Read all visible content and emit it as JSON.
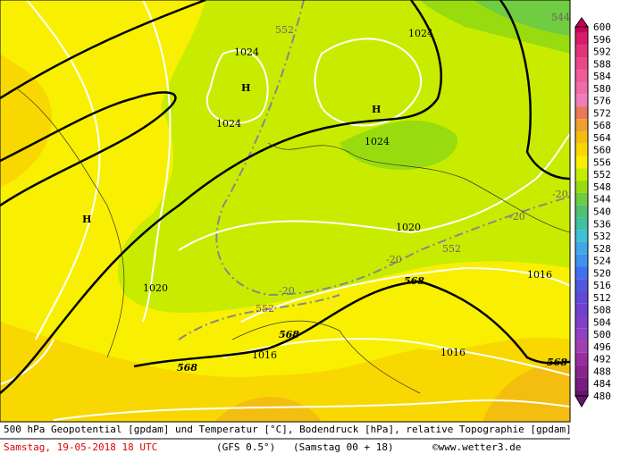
{
  "colorbar": {
    "labels": [
      600,
      596,
      592,
      588,
      584,
      580,
      576,
      572,
      568,
      564,
      560,
      556,
      552,
      548,
      544,
      540,
      536,
      532,
      528,
      524,
      520,
      516,
      512,
      508,
      504,
      500,
      496,
      492,
      488,
      484,
      480
    ],
    "colors": [
      "#c8005a",
      "#d81c68",
      "#e03478",
      "#e84888",
      "#f05c98",
      "#f06ca8",
      "#f07cb8",
      "#e87858",
      "#f0a030",
      "#f4be10",
      "#f8d800",
      "#f8f000",
      "#c8ec00",
      "#98dc10",
      "#70cc40",
      "#50c070",
      "#40c0a0",
      "#40c0d0",
      "#40a8e8",
      "#4090f0",
      "#4070f0",
      "#5058e0",
      "#6048d8",
      "#7040d0",
      "#8040c8",
      "#9040c0",
      "#a040b0",
      "#982ca0",
      "#882490",
      "#781c80",
      "#681470"
    ]
  },
  "contour_labels": [
    "1024",
    "1024",
    "1024",
    "1024",
    "1020",
    "1020",
    "1016",
    "1016",
    "1016",
    "552",
    "552",
    "552",
    "544",
    "-20",
    "-20",
    "-20",
    "-20",
    "568",
    "568",
    "568",
    "568",
    "H",
    "H",
    "H"
  ],
  "footer": {
    "description": "500 hPa Geopotential [gpdam] und Temperatur [°C], Bodendruck [hPa], relative Topographie [gpdam]",
    "date": "Samstag, 19-05-2018  18 UTC",
    "model": "(GFS 0.5°)",
    "run": "(Samstag 00 + 18)",
    "copyright": "©www.wetter3.de"
  }
}
